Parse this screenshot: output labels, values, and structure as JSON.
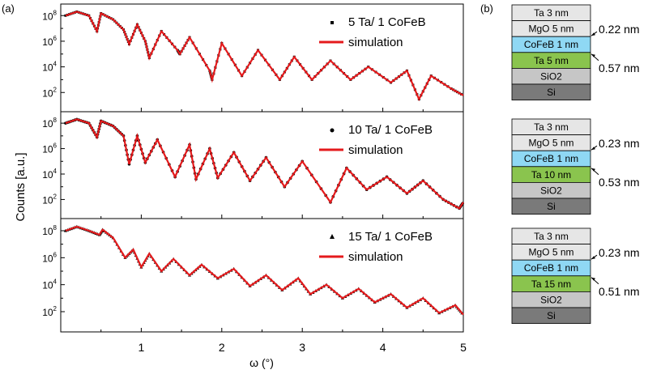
{
  "panel_labels": {
    "a": "(a)",
    "b": "(b)"
  },
  "axis": {
    "ylabel": "Counts [a.u.]",
    "xlabel": "ω (°)"
  },
  "chart_data": {
    "type": "scatter",
    "xlabel": "ω (°)",
    "ylabel": "Counts [a.u.]",
    "xlim": [
      0,
      5
    ],
    "x_ticks": [
      "1",
      "2",
      "3",
      "4",
      "5"
    ],
    "y_scale": "log",
    "y_ticks": [
      "10^2",
      "10^4",
      "10^6",
      "10^8"
    ],
    "panels": [
      {
        "sample": "5 Ta/ 1 CoFeB",
        "series": [
          {
            "name": "5 Ta/ 1 CoFeB",
            "style": "black square markers",
            "color": "#000000"
          },
          {
            "name": "simulation",
            "style": "line",
            "color": "#e41a1c"
          }
        ],
        "points": [
          [
            0.06,
            100000000.0
          ],
          [
            0.2,
            200000000.0
          ],
          [
            0.35,
            100000000.0
          ],
          [
            0.45,
            6000000.0
          ],
          [
            0.5,
            150000000.0
          ],
          [
            0.65,
            50000000.0
          ],
          [
            0.78,
            8000000.0
          ],
          [
            0.85,
            600000.0
          ],
          [
            0.95,
            20000000.0
          ],
          [
            1.05,
            1000000.0
          ],
          [
            1.1,
            50000.0
          ],
          [
            1.25,
            6000000.0
          ],
          [
            1.45,
            200000.0
          ],
          [
            1.48,
            100000.0
          ],
          [
            1.6,
            2000000.0
          ],
          [
            1.85,
            5000.0
          ],
          [
            1.88,
            1000.0
          ],
          [
            2.0,
            700000.0
          ],
          [
            2.25,
            2000.0
          ],
          [
            2.45,
            200000.0
          ],
          [
            2.72,
            1000.0
          ],
          [
            2.9,
            60000.0
          ],
          [
            3.12,
            1000.0
          ],
          [
            3.35,
            30000.0
          ],
          [
            3.6,
            1000.0
          ],
          [
            3.82,
            10000.0
          ],
          [
            4.1,
            600.0
          ],
          [
            4.3,
            5000.0
          ],
          [
            4.45,
            30
          ],
          [
            4.6,
            2000.0
          ],
          [
            4.85,
            200
          ],
          [
            5.0,
            60
          ]
        ]
      },
      {
        "sample": "10 Ta/ 1 CoFeB",
        "series": [
          {
            "name": "10 Ta/ 1 CoFeB",
            "style": "black circle markers",
            "color": "#000000"
          },
          {
            "name": "simulation",
            "style": "line",
            "color": "#e41a1c"
          }
        ],
        "points": [
          [
            0.06,
            100000000.0
          ],
          [
            0.2,
            200000000.0
          ],
          [
            0.35,
            100000000.0
          ],
          [
            0.45,
            8000000.0
          ],
          [
            0.5,
            150000000.0
          ],
          [
            0.65,
            60000000.0
          ],
          [
            0.78,
            10000000.0
          ],
          [
            0.85,
            60000.0
          ],
          [
            0.95,
            10000000.0
          ],
          [
            1.05,
            80000.0
          ],
          [
            1.2,
            5000000.0
          ],
          [
            1.42,
            6000.0
          ],
          [
            1.6,
            2000000.0
          ],
          [
            1.68,
            4000.0
          ],
          [
            1.85,
            1000000.0
          ],
          [
            1.95,
            5000.0
          ],
          [
            2.15,
            500000.0
          ],
          [
            2.35,
            3000.0
          ],
          [
            2.55,
            200000.0
          ],
          [
            2.78,
            1000.0
          ],
          [
            3.0,
            100000.0
          ],
          [
            3.35,
            60
          ],
          [
            3.55,
            30000.0
          ],
          [
            3.8,
            600
          ],
          [
            4.05,
            6000.0
          ],
          [
            4.3,
            300
          ],
          [
            4.5,
            3000.0
          ],
          [
            4.75,
            100
          ],
          [
            4.95,
            20
          ],
          [
            5.0,
            60
          ]
        ]
      },
      {
        "sample": "15 Ta/ 1 CoFeB",
        "series": [
          {
            "name": "15 Ta/ 1 CoFeB",
            "style": "black triangle markers",
            "color": "#000000"
          },
          {
            "name": "simulation",
            "style": "line",
            "color": "#e41a1c"
          }
        ],
        "points": [
          [
            0.06,
            100000000.0
          ],
          [
            0.2,
            200000000.0
          ],
          [
            0.35,
            100000000.0
          ],
          [
            0.48,
            50000000.0
          ],
          [
            0.52,
            120000000.0
          ],
          [
            0.65,
            30000000.0
          ],
          [
            0.8,
            1000000.0
          ],
          [
            0.9,
            4000000.0
          ],
          [
            1.0,
            200000.0
          ],
          [
            1.1,
            2000000.0
          ],
          [
            1.25,
            100000.0
          ],
          [
            1.4,
            800000.0
          ],
          [
            1.6,
            50000.0
          ],
          [
            1.75,
            300000.0
          ],
          [
            1.95,
            30000.0
          ],
          [
            2.15,
            150000.0
          ],
          [
            2.35,
            8000.0
          ],
          [
            2.55,
            50000.0
          ],
          [
            2.75,
            4000.0
          ],
          [
            2.95,
            30000.0
          ],
          [
            3.1,
            2000.0
          ],
          [
            3.3,
            10000.0
          ],
          [
            3.5,
            1000.0
          ],
          [
            3.7,
            5000.0
          ],
          [
            3.9,
            500
          ],
          [
            4.1,
            2000.0
          ],
          [
            4.3,
            200
          ],
          [
            4.5,
            1000.0
          ],
          [
            4.7,
            80
          ],
          [
            4.9,
            300
          ],
          [
            5.0,
            60
          ]
        ]
      }
    ]
  },
  "stacks": [
    {
      "layers": [
        {
          "label": "Ta 3 nm",
          "color": "#e6e6e6"
        },
        {
          "label": "MgO 5 nm",
          "color": "#e6e6e6"
        },
        {
          "label": "CoFeB 1 nm",
          "color": "#8fd8f4"
        },
        {
          "label": "Ta 5 nm",
          "color": "#8ac44e"
        },
        {
          "label": "SiO2",
          "color": "#c6c6c6"
        },
        {
          "label": "Si",
          "color": "#7a7a7a"
        }
      ],
      "annotations": [
        "0.22 nm",
        "0.57 nm"
      ]
    },
    {
      "layers": [
        {
          "label": "Ta 3 nm",
          "color": "#e6e6e6"
        },
        {
          "label": "MgO 5 nm",
          "color": "#e6e6e6"
        },
        {
          "label": "CoFeB 1 nm",
          "color": "#8fd8f4"
        },
        {
          "label": "Ta 10 nm",
          "color": "#8ac44e"
        },
        {
          "label": "SiO2",
          "color": "#c6c6c6"
        },
        {
          "label": "Si",
          "color": "#7a7a7a"
        }
      ],
      "annotations": [
        "0.23 nm",
        "0.53 nm"
      ]
    },
    {
      "layers": [
        {
          "label": "Ta 3 nm",
          "color": "#e6e6e6"
        },
        {
          "label": "MgO 5 nm",
          "color": "#e6e6e6"
        },
        {
          "label": "CoFeB 1 nm",
          "color": "#8fd8f4"
        },
        {
          "label": "Ta 15 nm",
          "color": "#8ac44e"
        },
        {
          "label": "SiO2",
          "color": "#c6c6c6"
        },
        {
          "label": "Si",
          "color": "#7a7a7a"
        }
      ],
      "annotations": [
        "0.23 nm",
        "0.51 nm"
      ]
    }
  ]
}
